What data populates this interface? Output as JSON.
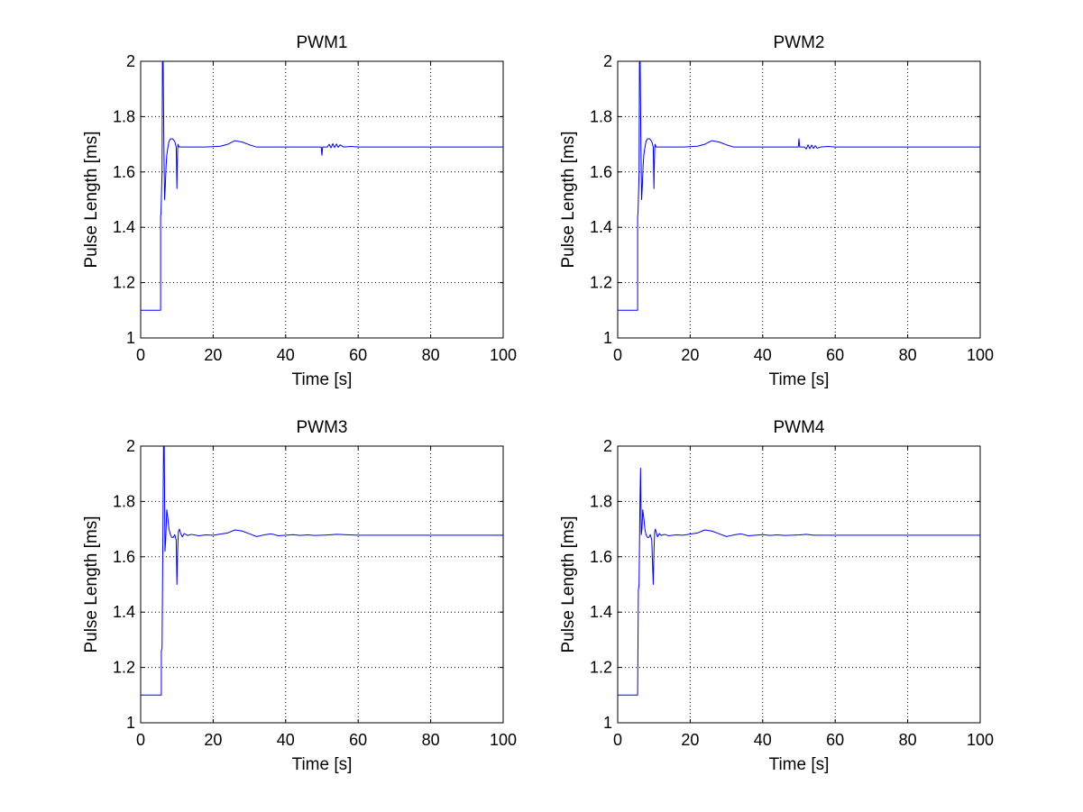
{
  "chart_data": [
    {
      "type": "line",
      "title": "PWM1",
      "xlabel": "Time [s]",
      "ylabel": "Pulse Length [ms]",
      "xlim": [
        0,
        100
      ],
      "ylim": [
        1,
        2
      ],
      "xticks": [
        0,
        20,
        40,
        60,
        80,
        100
      ],
      "yticks": [
        1,
        1.2,
        1.4,
        1.6,
        1.8,
        2
      ],
      "xtick_labels": [
        "0",
        "20",
        "40",
        "60",
        "80",
        "100"
      ],
      "ytick_labels": [
        "1",
        "1.2",
        "1.4",
        "1.6",
        "1.8",
        "2"
      ],
      "grid": true,
      "color": "#0000ff",
      "series": [
        {
          "x": [
            0,
            5.5,
            5.5,
            5.6,
            5.9,
            6.0,
            6.2,
            6.4,
            6.6,
            6.8,
            7.0,
            7.2,
            7.4,
            7.8,
            8.2,
            8.8,
            9.4,
            9.8,
            10.0,
            10.1,
            10.2,
            10.3,
            10.6,
            11.0,
            12,
            14,
            18,
            22,
            24,
            26,
            28,
            30,
            32,
            34,
            36,
            40,
            45,
            49.8,
            50,
            50.2,
            50.6,
            51.5,
            52,
            52.5,
            53,
            53.5,
            54,
            54.5,
            55,
            56,
            58,
            60,
            100
          ],
          "y": [
            1.1,
            1.1,
            1.44,
            1.45,
            1.6,
            2.0,
            2.0,
            1.7,
            1.5,
            1.55,
            1.62,
            1.66,
            1.68,
            1.71,
            1.72,
            1.72,
            1.71,
            1.69,
            1.54,
            1.62,
            1.68,
            1.7,
            1.69,
            1.69,
            1.69,
            1.69,
            1.69,
            1.693,
            1.7,
            1.713,
            1.708,
            1.698,
            1.69,
            1.69,
            1.69,
            1.69,
            1.69,
            1.69,
            1.66,
            1.69,
            1.69,
            1.69,
            1.7,
            1.687,
            1.702,
            1.688,
            1.701,
            1.689,
            1.698,
            1.69,
            1.692,
            1.69,
            1.69
          ]
        }
      ]
    },
    {
      "type": "line",
      "title": "PWM2",
      "xlabel": "Time [s]",
      "ylabel": "Pulse Length [ms]",
      "xlim": [
        0,
        100
      ],
      "ylim": [
        1,
        2
      ],
      "xticks": [
        0,
        20,
        40,
        60,
        80,
        100
      ],
      "yticks": [
        1,
        1.2,
        1.4,
        1.6,
        1.8,
        2
      ],
      "xtick_labels": [
        "0",
        "20",
        "40",
        "60",
        "80",
        "100"
      ],
      "ytick_labels": [
        "1",
        "1.2",
        "1.4",
        "1.6",
        "1.8",
        "2"
      ],
      "grid": true,
      "color": "#0000ff",
      "series": [
        {
          "x": [
            0,
            5.5,
            5.5,
            5.6,
            5.9,
            6.0,
            6.2,
            6.4,
            6.6,
            6.8,
            7.0,
            7.2,
            7.4,
            7.8,
            8.2,
            8.8,
            9.4,
            9.8,
            10.0,
            10.1,
            10.2,
            10.3,
            10.6,
            11.0,
            12,
            14,
            18,
            22,
            24,
            26,
            28,
            30,
            32,
            34,
            36,
            40,
            45,
            49.8,
            50,
            50.2,
            50.6,
            51.5,
            52,
            52.5,
            53,
            53.5,
            54,
            54.5,
            55,
            56,
            58,
            60,
            100
          ],
          "y": [
            1.1,
            1.1,
            1.44,
            1.45,
            1.6,
            2.0,
            2.0,
            1.7,
            1.5,
            1.55,
            1.62,
            1.66,
            1.68,
            1.71,
            1.72,
            1.72,
            1.71,
            1.69,
            1.54,
            1.62,
            1.68,
            1.7,
            1.69,
            1.69,
            1.69,
            1.69,
            1.69,
            1.693,
            1.7,
            1.713,
            1.708,
            1.698,
            1.69,
            1.69,
            1.69,
            1.69,
            1.69,
            1.69,
            1.72,
            1.69,
            1.69,
            1.69,
            1.683,
            1.698,
            1.684,
            1.697,
            1.685,
            1.695,
            1.686,
            1.69,
            1.692,
            1.69,
            1.69
          ]
        }
      ]
    },
    {
      "type": "line",
      "title": "PWM3",
      "xlabel": "Time [s]",
      "ylabel": "Pulse Length [ms]",
      "xlim": [
        0,
        100
      ],
      "ylim": [
        1,
        2
      ],
      "xticks": [
        0,
        20,
        40,
        60,
        80,
        100
      ],
      "yticks": [
        1,
        1.2,
        1.4,
        1.6,
        1.8,
        2
      ],
      "xtick_labels": [
        "0",
        "20",
        "40",
        "60",
        "80",
        "100"
      ],
      "ytick_labels": [
        "1",
        "1.2",
        "1.4",
        "1.6",
        "1.8",
        "2"
      ],
      "grid": true,
      "color": "#0000ff",
      "series": [
        {
          "x": [
            0,
            5.7,
            5.7,
            5.9,
            6.1,
            6.3,
            6.5,
            6.7,
            6.9,
            7.2,
            7.5,
            7.8,
            8.2,
            8.6,
            9.0,
            9.4,
            9.8,
            10.0,
            10.2,
            10.4,
            10.7,
            11.0,
            11.5,
            12,
            13,
            14,
            16,
            18,
            20,
            22,
            24,
            26,
            28,
            30,
            32,
            34,
            36,
            38,
            40,
            42,
            44,
            46,
            48,
            50,
            52,
            54,
            60,
            100
          ],
          "y": [
            1.1,
            1.1,
            1.26,
            1.27,
            1.62,
            2.0,
            2.0,
            1.62,
            1.66,
            1.77,
            1.74,
            1.7,
            1.68,
            1.67,
            1.67,
            1.68,
            1.66,
            1.5,
            1.62,
            1.69,
            1.7,
            1.685,
            1.672,
            1.684,
            1.677,
            1.681,
            1.676,
            1.679,
            1.678,
            1.682,
            1.686,
            1.697,
            1.693,
            1.683,
            1.673,
            1.679,
            1.683,
            1.676,
            1.678,
            1.68,
            1.677,
            1.679,
            1.677,
            1.678,
            1.679,
            1.681,
            1.678,
            1.678
          ]
        }
      ]
    },
    {
      "type": "line",
      "title": "PWM4",
      "xlabel": "Time [s]",
      "ylabel": "Pulse Length [ms]",
      "xlim": [
        0,
        100
      ],
      "ylim": [
        1,
        2
      ],
      "xticks": [
        0,
        20,
        40,
        60,
        80,
        100
      ],
      "yticks": [
        1,
        1.2,
        1.4,
        1.6,
        1.8,
        2
      ],
      "xtick_labels": [
        "0",
        "20",
        "40",
        "60",
        "80",
        "100"
      ],
      "ytick_labels": [
        "1",
        "1.2",
        "1.4",
        "1.6",
        "1.8",
        "2"
      ],
      "grid": true,
      "color": "#0000ff",
      "series": [
        {
          "x": [
            0,
            5.5,
            5.5,
            5.7,
            5.9,
            6.1,
            6.3,
            6.5,
            6.7,
            6.9,
            7.2,
            7.5,
            7.8,
            8.2,
            8.6,
            9.0,
            9.4,
            9.8,
            10.0,
            10.2,
            10.4,
            10.7,
            11.0,
            11.5,
            12,
            13,
            14,
            16,
            18,
            20,
            22,
            24,
            26,
            28,
            30,
            32,
            34,
            36,
            38,
            40,
            42,
            44,
            46,
            48,
            50,
            52,
            54,
            60,
            100
          ],
          "y": [
            1.1,
            1.1,
            1.11,
            1.48,
            1.5,
            1.76,
            1.92,
            1.68,
            1.7,
            1.77,
            1.74,
            1.7,
            1.68,
            1.67,
            1.67,
            1.68,
            1.66,
            1.5,
            1.62,
            1.69,
            1.7,
            1.685,
            1.672,
            1.684,
            1.677,
            1.681,
            1.676,
            1.679,
            1.678,
            1.682,
            1.686,
            1.697,
            1.693,
            1.683,
            1.673,
            1.679,
            1.683,
            1.676,
            1.678,
            1.68,
            1.677,
            1.679,
            1.677,
            1.678,
            1.679,
            1.681,
            1.678,
            1.678,
            1.678
          ]
        }
      ]
    }
  ]
}
